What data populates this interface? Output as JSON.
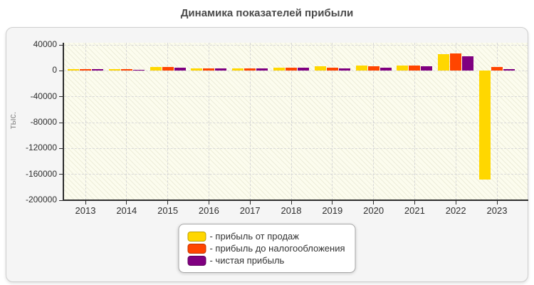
{
  "title": "Динамика показателей прибыли",
  "legend": {
    "prefix": "- "
  },
  "chart_data": {
    "type": "bar",
    "title": "Динамика показателей прибыли",
    "xlabel": "",
    "ylabel": "тыс.",
    "ylim": [
      -200000,
      40000
    ],
    "y_ticks": [
      40000,
      0,
      -40000,
      -80000,
      -120000,
      -160000,
      -200000
    ],
    "grid": true,
    "legend_position": "bottom",
    "categories": [
      "2013",
      "2014",
      "2015",
      "2016",
      "2017",
      "2018",
      "2019",
      "2020",
      "2021",
      "2022",
      "2023"
    ],
    "series": [
      {
        "name": "прибыль от продаж",
        "color": "#FFD700",
        "values": [
          2500,
          2300,
          5500,
          3800,
          3800,
          5000,
          7200,
          7800,
          7800,
          25500,
          -168000
        ]
      },
      {
        "name": "прибыль до налогообложения",
        "color": "#FF4500",
        "values": [
          2700,
          2500,
          5800,
          4000,
          4000,
          5200,
          5300,
          7200,
          7600,
          26500,
          5500
        ]
      },
      {
        "name": "чистая прибыль",
        "color": "#800080",
        "values": [
          2200,
          2000,
          5200,
          3500,
          3600,
          4800,
          4200,
          5000,
          7000,
          22500,
          3000
        ]
      }
    ]
  }
}
